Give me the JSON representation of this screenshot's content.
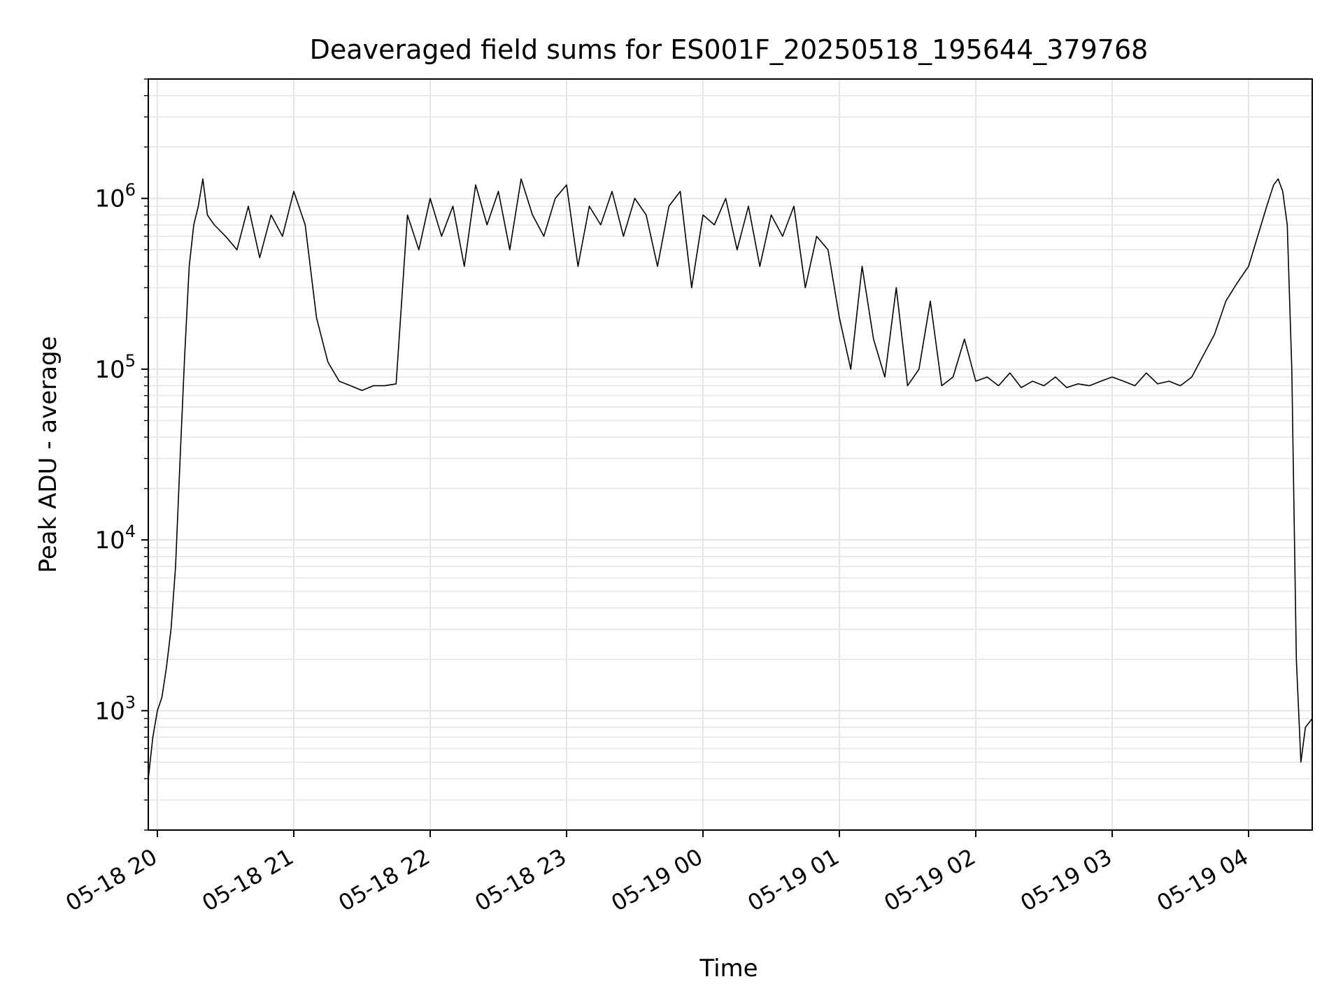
{
  "chart_data": {
    "type": "line",
    "title": "Deaveraged field sums for ES001F_20250518_195644_379768",
    "xlabel": "Time",
    "ylabel": "Peak ADU - average",
    "y_scale": "log",
    "grid": true,
    "xlim": [
      "2025-05-18 19:56",
      "2025-05-19 04:28"
    ],
    "ylim": [
      200,
      5000000
    ],
    "x_ticks": [
      {
        "value": "2025-05-18 20:00",
        "label": "05-18 20"
      },
      {
        "value": "2025-05-18 21:00",
        "label": "05-18 21"
      },
      {
        "value": "2025-05-18 22:00",
        "label": "05-18 22"
      },
      {
        "value": "2025-05-18 23:00",
        "label": "05-18 23"
      },
      {
        "value": "2025-05-19 00:00",
        "label": "05-19 00"
      },
      {
        "value": "2025-05-19 01:00",
        "label": "05-19 01"
      },
      {
        "value": "2025-05-19 02:00",
        "label": "05-19 02"
      },
      {
        "value": "2025-05-19 03:00",
        "label": "05-19 03"
      },
      {
        "value": "2025-05-19 04:00",
        "label": "05-19 04"
      }
    ],
    "y_ticks": [
      {
        "value": 1000,
        "base": "10",
        "exp": "3"
      },
      {
        "value": 10000,
        "base": "10",
        "exp": "4"
      },
      {
        "value": 100000,
        "base": "10",
        "exp": "5"
      },
      {
        "value": 1000000,
        "base": "10",
        "exp": "6"
      }
    ],
    "line_color": "#000000",
    "grid_color": "#e5e5e5",
    "series": [
      {
        "x": [
          "2025-05-18 19:56",
          "2025-05-18 19:58",
          "2025-05-18 20:00",
          "2025-05-18 20:02",
          "2025-05-18 20:04",
          "2025-05-18 20:06",
          "2025-05-18 20:08",
          "2025-05-18 20:10",
          "2025-05-18 20:12",
          "2025-05-18 20:14",
          "2025-05-18 20:16",
          "2025-05-18 20:18",
          "2025-05-18 20:20",
          "2025-05-18 20:22",
          "2025-05-18 20:25",
          "2025-05-18 20:30",
          "2025-05-18 20:35",
          "2025-05-18 20:40",
          "2025-05-18 20:45",
          "2025-05-18 20:50",
          "2025-05-18 20:55",
          "2025-05-18 21:00",
          "2025-05-18 21:05",
          "2025-05-18 21:10",
          "2025-05-18 21:15",
          "2025-05-18 21:20",
          "2025-05-18 21:25",
          "2025-05-18 21:30",
          "2025-05-18 21:35",
          "2025-05-18 21:40",
          "2025-05-18 21:45",
          "2025-05-18 21:50",
          "2025-05-18 21:55",
          "2025-05-18 22:00",
          "2025-05-18 22:05",
          "2025-05-18 22:10",
          "2025-05-18 22:15",
          "2025-05-18 22:20",
          "2025-05-18 22:25",
          "2025-05-18 22:30",
          "2025-05-18 22:35",
          "2025-05-18 22:40",
          "2025-05-18 22:45",
          "2025-05-18 22:50",
          "2025-05-18 22:55",
          "2025-05-18 23:00",
          "2025-05-18 23:05",
          "2025-05-18 23:10",
          "2025-05-18 23:15",
          "2025-05-18 23:20",
          "2025-05-18 23:25",
          "2025-05-18 23:30",
          "2025-05-18 23:35",
          "2025-05-18 23:40",
          "2025-05-18 23:45",
          "2025-05-18 23:50",
          "2025-05-18 23:55",
          "2025-05-19 00:00",
          "2025-05-19 00:05",
          "2025-05-19 00:10",
          "2025-05-19 00:15",
          "2025-05-19 00:20",
          "2025-05-19 00:25",
          "2025-05-19 00:30",
          "2025-05-19 00:35",
          "2025-05-19 00:40",
          "2025-05-19 00:45",
          "2025-05-19 00:50",
          "2025-05-19 00:55",
          "2025-05-19 01:00",
          "2025-05-19 01:05",
          "2025-05-19 01:10",
          "2025-05-19 01:15",
          "2025-05-19 01:20",
          "2025-05-19 01:25",
          "2025-05-19 01:30",
          "2025-05-19 01:35",
          "2025-05-19 01:40",
          "2025-05-19 01:45",
          "2025-05-19 01:50",
          "2025-05-19 01:55",
          "2025-05-19 02:00",
          "2025-05-19 02:05",
          "2025-05-19 02:10",
          "2025-05-19 02:15",
          "2025-05-19 02:20",
          "2025-05-19 02:25",
          "2025-05-19 02:30",
          "2025-05-19 02:35",
          "2025-05-19 02:40",
          "2025-05-19 02:45",
          "2025-05-19 02:50",
          "2025-05-19 02:55",
          "2025-05-19 03:00",
          "2025-05-19 03:05",
          "2025-05-19 03:10",
          "2025-05-19 03:15",
          "2025-05-19 03:20",
          "2025-05-19 03:25",
          "2025-05-19 03:30",
          "2025-05-19 03:35",
          "2025-05-19 03:40",
          "2025-05-19 03:45",
          "2025-05-19 03:50",
          "2025-05-19 03:55",
          "2025-05-19 04:00",
          "2025-05-19 04:04",
          "2025-05-19 04:08",
          "2025-05-19 04:11",
          "2025-05-19 04:13",
          "2025-05-19 04:15",
          "2025-05-19 04:17",
          "2025-05-19 04:19",
          "2025-05-19 04:21",
          "2025-05-19 04:23",
          "2025-05-19 04:25",
          "2025-05-19 04:28"
        ],
        "y": [
          400,
          700,
          1000,
          1200,
          1800,
          3000,
          7000,
          30000,
          120000,
          400000,
          700000,
          900000,
          1300000,
          800000,
          700000,
          600000,
          500000,
          900000,
          450000,
          800000,
          600000,
          1100000,
          700000,
          200000,
          110000,
          85000,
          80000,
          75000,
          80000,
          80000,
          82000,
          800000,
          500000,
          1000000,
          600000,
          900000,
          400000,
          1200000,
          700000,
          1100000,
          500000,
          1300000,
          800000,
          600000,
          1000000,
          1200000,
          400000,
          900000,
          700000,
          1100000,
          600000,
          1000000,
          800000,
          400000,
          900000,
          1100000,
          300000,
          800000,
          700000,
          1000000,
          500000,
          900000,
          400000,
          800000,
          600000,
          900000,
          300000,
          600000,
          500000,
          200000,
          100000,
          400000,
          150000,
          90000,
          300000,
          80000,
          100000,
          250000,
          80000,
          90000,
          150000,
          85000,
          90000,
          80000,
          95000,
          78000,
          85000,
          80000,
          90000,
          78000,
          82000,
          80000,
          85000,
          90000,
          85000,
          80000,
          95000,
          82000,
          85000,
          80000,
          90000,
          120000,
          160000,
          250000,
          320000,
          400000,
          600000,
          900000,
          1200000,
          1300000,
          1100000,
          700000,
          100000,
          2000,
          500,
          800,
          900
        ]
      }
    ]
  }
}
